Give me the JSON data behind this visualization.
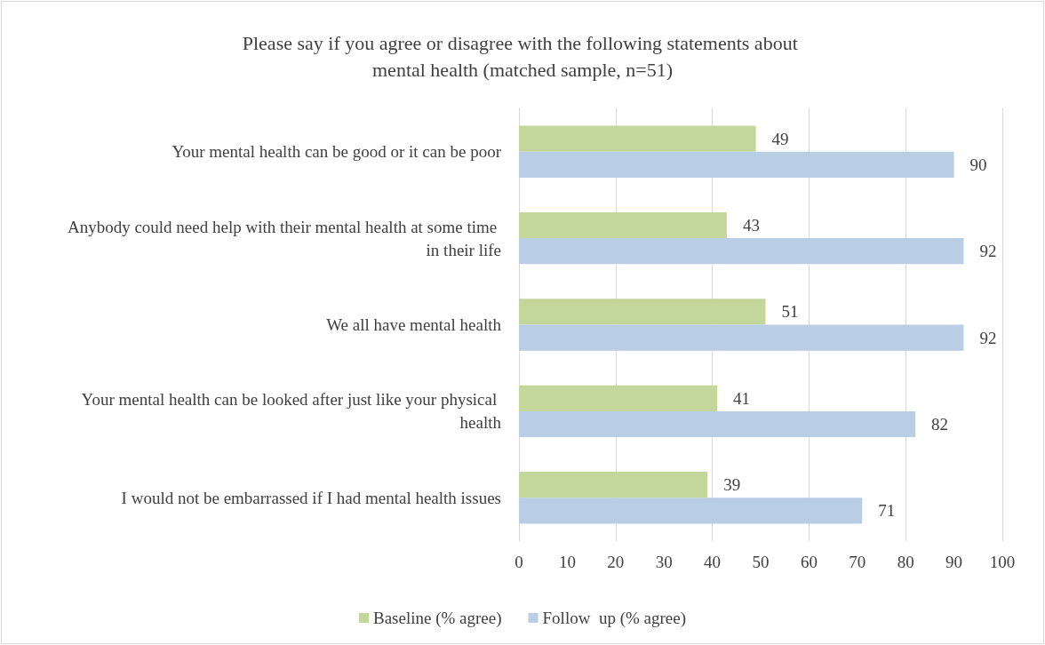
{
  "chart_data": {
    "type": "bar",
    "orientation": "horizontal",
    "title": "Please say if you agree or disagree with the following statements about mental health (matched sample, n=51)",
    "categories": [
      "Your mental health can be good or it can be poor",
      "Anybody could need help with their mental health at some time in their life",
      "We all have mental health",
      "Your mental health can be looked after just like your physical health",
      "I would not be embarrassed if I had mental health issues"
    ],
    "series": [
      {
        "name": "Baseline (% agree)",
        "color": "#c4d79b",
        "values": [
          49,
          43,
          51,
          41,
          39
        ]
      },
      {
        "name": "Follow  up (% agree)",
        "color": "#b9cde5",
        "values": [
          90,
          92,
          92,
          82,
          71
        ]
      }
    ],
    "xlim": [
      0,
      100
    ],
    "xticks": [
      0,
      10,
      20,
      30,
      40,
      50,
      60,
      70,
      80,
      90,
      100
    ],
    "grid": "x",
    "legend": "bottom",
    "data_labels": true
  }
}
